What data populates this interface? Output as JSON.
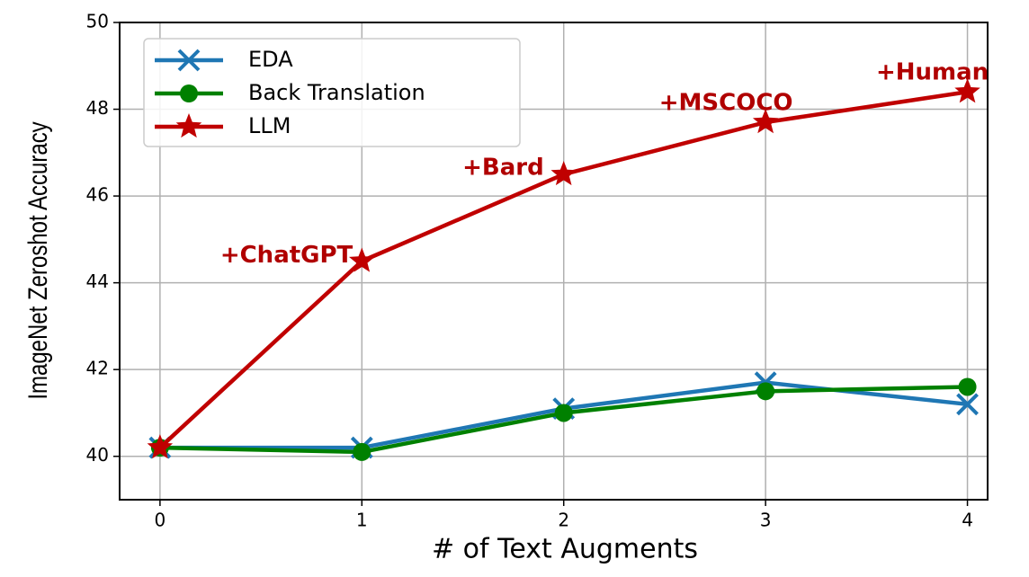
{
  "chart_data": {
    "type": "line",
    "x_label": "# of Text Augments",
    "y_label": "ImageNet Zeroshot Accuracy",
    "x": [
      0,
      1,
      2,
      3,
      4
    ],
    "series": [
      {
        "name": "EDA",
        "color": "#1f77b4",
        "marker": "x",
        "values": [
          40.2,
          40.2,
          41.1,
          41.7,
          41.2
        ]
      },
      {
        "name": "Back Translation",
        "color": "#008000",
        "marker": "circle",
        "values": [
          40.2,
          40.1,
          41.0,
          41.5,
          41.6
        ]
      },
      {
        "name": "LLM",
        "color": "#c00000",
        "marker": "star",
        "values": [
          40.2,
          44.5,
          46.5,
          47.7,
          48.4
        ]
      }
    ],
    "annotations": [
      "+ChatGPT",
      "+Bard",
      "+MSCOCO",
      "+Human"
    ],
    "xlim": [
      -0.2,
      4.1
    ],
    "xticks": [
      0,
      1,
      2,
      3,
      4
    ],
    "ylim": [
      39,
      50
    ],
    "yticks": [
      40,
      42,
      44,
      46,
      48,
      50
    ],
    "grid": true,
    "legend": "upper left"
  }
}
